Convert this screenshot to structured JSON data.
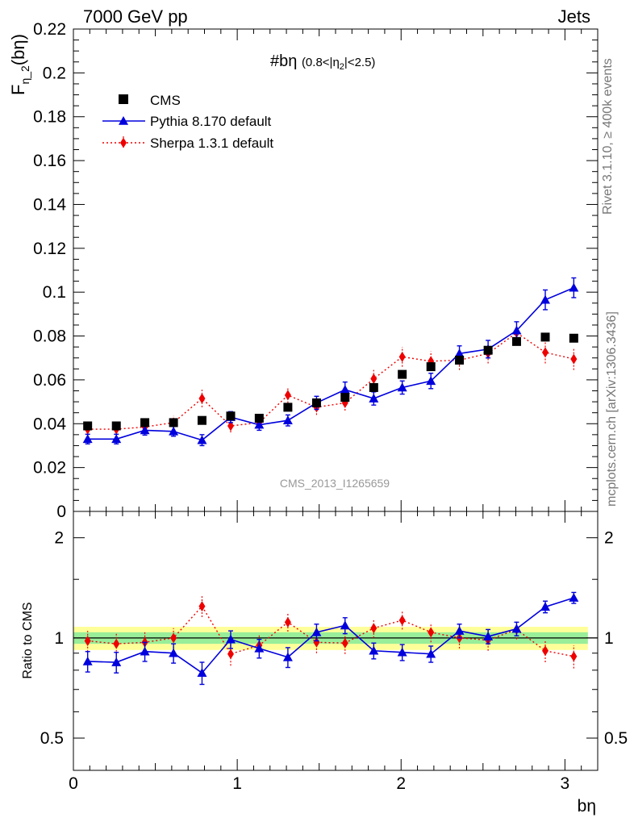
{
  "header": {
    "left": "7000 GeV pp",
    "right": "Jets"
  },
  "side_labels": {
    "rivet": "Rivet 3.1.10, ≥ 400k events",
    "mcplots": "mcplots.cern.ch [arXiv:1306.3436]"
  },
  "colors": {
    "cms": "#000000",
    "pythia": "#0000dd",
    "sherpa": "#ee0000",
    "band_inner": "#99ee99",
    "band_outer": "#ffff99"
  },
  "chart_data": [
    {
      "type": "scatter",
      "panel": "main",
      "title": "#bη",
      "title_sub": "(0.8<|η",
      "title_sub2": "|<2.5)",
      "title_subscript": "2",
      "watermark": "CMS_2013_I1265659",
      "ylabel": "F",
      "ylabel_sub": "η_2",
      "ylabel_tail": "(bη)",
      "xlabel": "bη",
      "xlim": [
        0,
        3.2
      ],
      "ylim": [
        0,
        0.22
      ],
      "x_ticks": [
        "0",
        "1",
        "2",
        "3"
      ],
      "y_ticks": [
        "0",
        "0.02",
        "0.04",
        "0.06",
        "0.08",
        "0.1",
        "0.12",
        "0.14",
        "0.16",
        "0.18",
        "0.2",
        "0.22"
      ],
      "legend_position": "top-left",
      "x": [
        0.087,
        0.262,
        0.436,
        0.611,
        0.785,
        0.96,
        1.134,
        1.309,
        1.484,
        1.658,
        1.833,
        2.007,
        2.182,
        2.356,
        2.531,
        2.705,
        2.88,
        3.054
      ],
      "series": [
        {
          "name": "CMS",
          "marker": "square",
          "values": [
            0.039,
            0.039,
            0.0405,
            0.0405,
            0.0415,
            0.0435,
            0.0425,
            0.0475,
            0.0495,
            0.052,
            0.0565,
            0.0625,
            0.066,
            0.069,
            0.0735,
            0.0775,
            0.0795,
            0.079
          ]
        },
        {
          "name": "Pythia 8.170 default",
          "marker": "triangle",
          "values": [
            0.033,
            0.033,
            0.037,
            0.0365,
            0.0325,
            0.043,
            0.0395,
            0.0415,
            0.0495,
            0.0555,
            0.0515,
            0.0565,
            0.0595,
            0.072,
            0.074,
            0.0825,
            0.0965,
            0.102
          ],
          "errors": [
            0.0022,
            0.0022,
            0.0022,
            0.0022,
            0.0025,
            0.0025,
            0.0025,
            0.0025,
            0.003,
            0.0035,
            0.003,
            0.003,
            0.0035,
            0.0035,
            0.004,
            0.004,
            0.0045,
            0.0045
          ]
        },
        {
          "name": "Sherpa 1.3.1 default",
          "marker": "diamond",
          "values": [
            0.0375,
            0.0375,
            0.0385,
            0.0405,
            0.0515,
            0.039,
            0.0405,
            0.053,
            0.0475,
            0.0495,
            0.0605,
            0.0705,
            0.0685,
            0.069,
            0.072,
            0.0815,
            0.0725,
            0.0695
          ],
          "errors": [
            0.0025,
            0.0025,
            0.0025,
            0.003,
            0.004,
            0.003,
            0.003,
            0.0035,
            0.0035,
            0.0035,
            0.004,
            0.0045,
            0.0045,
            0.0045,
            0.0045,
            0.005,
            0.005,
            0.005
          ]
        }
      ]
    },
    {
      "type": "line",
      "panel": "ratio",
      "ylabel": "Ratio to CMS",
      "ylim": [
        0.4,
        2.4
      ],
      "y_scale": "log",
      "y_ticks": [
        "0.5",
        "1",
        "2"
      ],
      "x": [
        0.087,
        0.262,
        0.436,
        0.611,
        0.785,
        0.96,
        1.134,
        1.309,
        1.484,
        1.658,
        1.833,
        2.007,
        2.182,
        2.356,
        2.531,
        2.705,
        2.88,
        3.054
      ],
      "band_inner": 0.04,
      "band_outer": 0.08,
      "series": [
        {
          "name": "Pythia 8.170 default",
          "values": [
            0.85,
            0.845,
            0.91,
            0.9,
            0.785,
            0.99,
            0.93,
            0.875,
            1.04,
            1.09,
            0.915,
            0.905,
            0.895,
            1.05,
            1.01,
            1.065,
            1.24,
            1.32
          ],
          "errors": [
            0.06,
            0.06,
            0.06,
            0.06,
            0.06,
            0.06,
            0.06,
            0.06,
            0.06,
            0.06,
            0.05,
            0.05,
            0.05,
            0.05,
            0.05,
            0.05,
            0.05,
            0.05
          ]
        },
        {
          "name": "Sherpa 1.3.1 default",
          "values": [
            0.98,
            0.96,
            0.97,
            1.0,
            1.245,
            0.895,
            0.95,
            1.115,
            0.97,
            0.965,
            1.07,
            1.13,
            1.04,
            1.0,
            0.985,
            1.06,
            0.915,
            0.88
          ],
          "errors": [
            0.07,
            0.07,
            0.07,
            0.07,
            0.09,
            0.07,
            0.07,
            0.07,
            0.07,
            0.07,
            0.07,
            0.07,
            0.07,
            0.07,
            0.07,
            0.07,
            0.07,
            0.07
          ]
        }
      ]
    }
  ]
}
